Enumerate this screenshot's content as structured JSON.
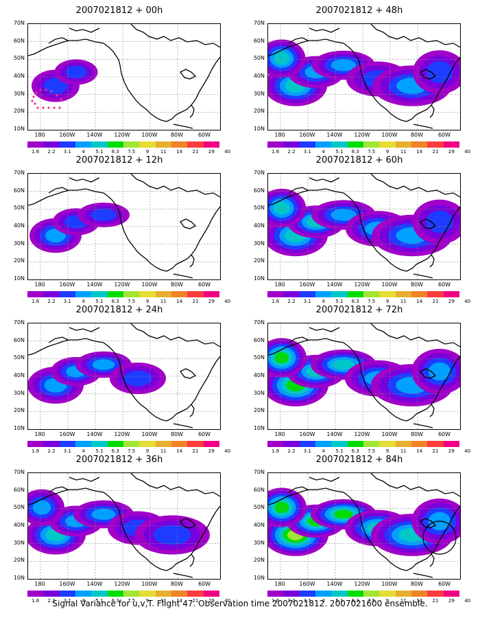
{
  "caption": "Signal Variance for u,v,T. Flight 47. Observation time 2007021812. 2007021600 ensemble.",
  "lat_labels": [
    "70N",
    "60N",
    "50N",
    "40N",
    "30N",
    "20N",
    "10N"
  ],
  "lon_labels": [
    "180",
    "160W",
    "140W",
    "120W",
    "100W",
    "80W",
    "60W"
  ],
  "colorbar": {
    "labels": [
      "1.6",
      "2.2",
      "3.1",
      "4",
      "5.1",
      "6.3",
      "7.5",
      "9",
      "11",
      "14",
      "21",
      "29",
      "40"
    ],
    "colors": [
      "#a000c8",
      "#7800dc",
      "#1e3cff",
      "#00a0ff",
      "#00c8c8",
      "#00dc00",
      "#a0e632",
      "#e6dc32",
      "#e6af2d",
      "#f08228",
      "#fa3c3c",
      "#f00082"
    ]
  },
  "panels": [
    {
      "title": "2007021812 + 00h",
      "intensity": 0.45,
      "extent": 0.35
    },
    {
      "title": "2007021812 + 12h",
      "intensity": 0.55,
      "extent": 0.5
    },
    {
      "title": "2007021812 + 24h",
      "intensity": 0.6,
      "extent": 0.65
    },
    {
      "title": "2007021812 + 36h",
      "intensity": 0.65,
      "extent": 0.8
    },
    {
      "title": "2007021812 + 48h",
      "intensity": 0.7,
      "extent": 0.9
    },
    {
      "title": "2007021812 + 60h",
      "intensity": 0.75,
      "extent": 0.95
    },
    {
      "title": "2007021812 + 72h",
      "intensity": 0.85,
      "extent": 1.0
    },
    {
      "title": "2007021812 + 84h",
      "intensity": 0.95,
      "extent": 1.0
    }
  ]
}
